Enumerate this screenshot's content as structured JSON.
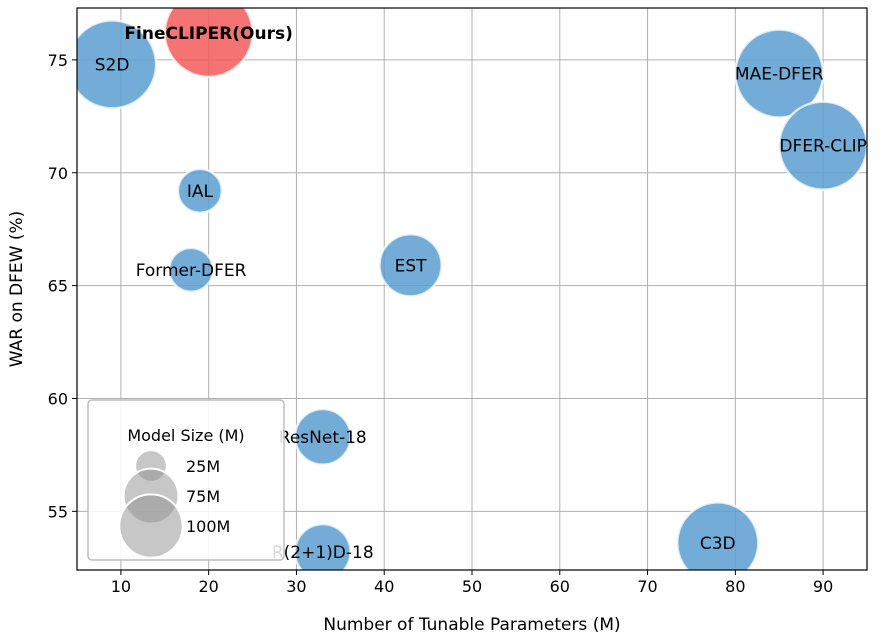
{
  "chart_data": {
    "type": "scatter",
    "xlabel": "Number of Tunable Parameters (M)",
    "ylabel": "WAR on DFEW (%)",
    "xlim": [
      5,
      95
    ],
    "ylim": [
      52.4,
      77.3
    ],
    "xticks": [
      10,
      20,
      30,
      40,
      50,
      60,
      70,
      80,
      90
    ],
    "yticks": [
      55,
      60,
      65,
      70,
      75
    ],
    "grid": true,
    "points": [
      {
        "label": "FineCLIPER(Ours)",
        "x": 20,
        "y": 76.2,
        "size": 100,
        "color": "#f55a5a",
        "bold": true
      },
      {
        "label": "S2D",
        "x": 9,
        "y": 74.8,
        "size": 100,
        "color": "#5b9fd0",
        "bold": false
      },
      {
        "label": "MAE-DFER",
        "x": 85,
        "y": 74.4,
        "size": 100,
        "color": "#5b9fd0",
        "bold": false
      },
      {
        "label": "DFER-CLIP",
        "x": 90,
        "y": 71.2,
        "size": 100,
        "color": "#5b9fd0",
        "bold": false
      },
      {
        "label": "IAL",
        "x": 19,
        "y": 69.2,
        "size": 25,
        "color": "#5b9fd0",
        "bold": false
      },
      {
        "label": "Former-DFER",
        "x": 18,
        "y": 65.7,
        "size": 25,
        "color": "#5b9fd0",
        "bold": false
      },
      {
        "label": "EST",
        "x": 43,
        "y": 65.9,
        "size": 50,
        "color": "#5b9fd0",
        "bold": false
      },
      {
        "label": "ResNet-18",
        "x": 33,
        "y": 58.3,
        "size": 40,
        "color": "#5b9fd0",
        "bold": false
      },
      {
        "label": "R(2+1)D-18",
        "x": 33,
        "y": 53.2,
        "size": 40,
        "color": "#5b9fd0",
        "bold": false
      },
      {
        "label": "C3D",
        "x": 78,
        "y": 53.6,
        "size": 85,
        "color": "#5b9fd0",
        "bold": false
      }
    ],
    "legend": {
      "title": "Model Size (M)",
      "placement": "lower-left",
      "entries": [
        {
          "label": "25M",
          "size": 25
        },
        {
          "label": "75M",
          "size": 75
        },
        {
          "label": "100M",
          "size": 100
        }
      ]
    }
  }
}
